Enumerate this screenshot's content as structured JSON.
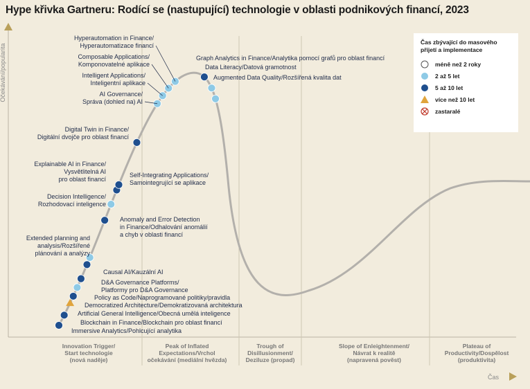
{
  "title": "Hype křivka Gartneru: Rodící se (nastupující) technologie v oblasti podnikových financí, 2023",
  "chart_data": {
    "type": "scatter",
    "ylabel": "Očekávání/popularita",
    "xlabel": "Čas",
    "phases": [
      [
        "Innovation Trigger/",
        "Start technologie",
        "(nová naděje)"
      ],
      [
        "Peak of Inflated",
        "Expectations/Vrchol",
        "očekávání (mediální hvězda)"
      ],
      [
        "Trough of",
        "Disillusionment/",
        "Deziluze (propad)"
      ],
      [
        "Slope of Enleightenment/",
        "Návrat k realitě",
        "(napravená povĕst)"
      ],
      [
        "Plateau of",
        "Productivity/Dospělost",
        "(produktivita)"
      ]
    ],
    "legend": {
      "title": "Čas zbývající do masového přijetí a implementace",
      "items": [
        {
          "key": "lt2",
          "label": "méně než 2 roky",
          "color": "#ffffff"
        },
        {
          "key": "2to5",
          "label": "2 až 5 let",
          "color": "#8ecae6"
        },
        {
          "key": "5to10",
          "label": "5 až 10 let",
          "color": "#1f4f8e"
        },
        {
          "key": "gt10",
          "label": "více než 10 let",
          "color": "#e0a43c"
        },
        {
          "key": "obsolete",
          "label": "zastaralé",
          "color": "#c0392b"
        }
      ]
    },
    "points": [
      {
        "label": [
          "Immersive Analytics/Pohlcující analytika"
        ],
        "pos": 0.0,
        "cat": "5to10"
      },
      {
        "label": [
          "Blockchain in Finance/Blockchain pro oblast financí"
        ],
        "pos": 0.03,
        "cat": "5to10"
      },
      {
        "label": [
          "Artificial General Intelligence/Obecná umělá inteligence"
        ],
        "pos": 0.065,
        "cat": "gt10"
      },
      {
        "label": [
          "Democratized Architecture/Demokratizovaná architektura"
        ],
        "pos": 0.085,
        "cat": "5to10"
      },
      {
        "label": [
          "Policy as Code/Naprogramované politiky/pravidla"
        ],
        "pos": 0.11,
        "cat": "2to5"
      },
      {
        "label": [
          "D&A Governance Platforms/",
          "Platformy pro D&A Governance"
        ],
        "pos": 0.135,
        "cat": "5to10"
      },
      {
        "label": [
          "Causal AI/Kauzální AI"
        ],
        "pos": 0.175,
        "cat": "5to10"
      },
      {
        "label": [
          "Extended planning and",
          "analysis/Rozšířené",
          "plánování a analýzy"
        ],
        "pos": 0.195,
        "cat": "2to5"
      },
      {
        "label": [
          "Anomaly and Error Detection",
          "in Finance/Odhalování anomálií",
          "a chyb v oblasti financí"
        ],
        "pos": 0.3,
        "cat": "5to10"
      },
      {
        "label": [
          "Decision Intelligence/",
          "Rozhodovací inteligence"
        ],
        "pos": 0.345,
        "cat": "2to5"
      },
      {
        "label": [
          "Self-Integrating Applications/",
          "Samointegrující se aplikace"
        ],
        "pos": 0.385,
        "cat": "5to10"
      },
      {
        "label": [
          "Explainable AI in Finance/",
          "Vysvětlitelná AI",
          "pro oblast financí"
        ],
        "pos": 0.4,
        "cat": "5to10"
      },
      {
        "label": [
          "Digital Twin in Finance/",
          "Digitální dvojče pro oblast financí"
        ],
        "pos": 0.52,
        "cat": "5to10"
      },
      {
        "label": [
          "AI Governance/",
          "Správa (dohled na) AI"
        ],
        "pos": 0.635,
        "cat": "2to5"
      },
      {
        "label": [
          "Intelligent Applications/",
          "Inteligentní aplikace"
        ],
        "pos": 0.66,
        "cat": "2to5"
      },
      {
        "label": [
          "Composable Applications/",
          "Komponovatelné aplikace"
        ],
        "pos": 0.685,
        "cat": "2to5"
      },
      {
        "label": [
          "Hyperautomation in Finance/",
          "Hyperautomatizace financí"
        ],
        "pos": 0.71,
        "cat": "2to5"
      },
      {
        "label": [
          "Graph Analytics in Finance/Analytika pomocí grafů pro oblast financí"
        ],
        "pos": 0.795,
        "cat": "5to10"
      },
      {
        "label": [
          "Data Literacy/Datová gramotnost"
        ],
        "pos": 0.83,
        "cat": "2to5"
      },
      {
        "label": [
          "Augmented Data Quality/Rozšířená kvalita dat"
        ],
        "pos": 0.86,
        "cat": "2to5"
      }
    ]
  }
}
